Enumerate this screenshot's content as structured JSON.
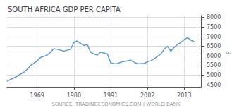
{
  "chart_data": {
    "type": "line",
    "title": "SOUTH AFRICA GDP PER CAPITA",
    "source": "SOURCE: TRADINGECONOMICS.COM | WORLD BANK",
    "annotations": [
      "8"
    ],
    "x": [
      1960,
      1961,
      1962,
      1963,
      1964,
      1965,
      1966,
      1967,
      1968,
      1969,
      1970,
      1971,
      1972,
      1973,
      1974,
      1975,
      1976,
      1977,
      1978,
      1979,
      1980,
      1981,
      1982,
      1983,
      1984,
      1985,
      1986,
      1987,
      1988,
      1989,
      1990,
      1991,
      1992,
      1993,
      1994,
      1995,
      1996,
      1997,
      1998,
      1999,
      2000,
      2001,
      2002,
      2003,
      2004,
      2005,
      2006,
      2007,
      2008,
      2009,
      2010,
      2011,
      2012,
      2013,
      2014,
      2015,
      2016
    ],
    "values": [
      4680,
      4780,
      4850,
      4950,
      5060,
      5150,
      5300,
      5500,
      5620,
      5750,
      5920,
      5980,
      6050,
      6200,
      6380,
      6350,
      6300,
      6250,
      6300,
      6350,
      6700,
      6780,
      6650,
      6550,
      6600,
      6200,
      6100,
      6050,
      6200,
      6150,
      6100,
      5650,
      5600,
      5600,
      5680,
      5720,
      5750,
      5780,
      5680,
      5600,
      5600,
      5620,
      5700,
      5750,
      5850,
      5980,
      6100,
      6350,
      6500,
      6250,
      6450,
      6600,
      6700,
      6850,
      6950,
      6820,
      6750
    ],
    "color": "#5b9bd5",
    "xlim": [
      1960,
      2018
    ],
    "xticks": [
      1969,
      1980,
      1991,
      2002,
      2013
    ],
    "ylim": [
      4400,
      8100
    ],
    "yticks": [
      4500,
      5000,
      5500,
      6000,
      6500,
      7000,
      7500,
      8000
    ],
    "grid": true
  }
}
